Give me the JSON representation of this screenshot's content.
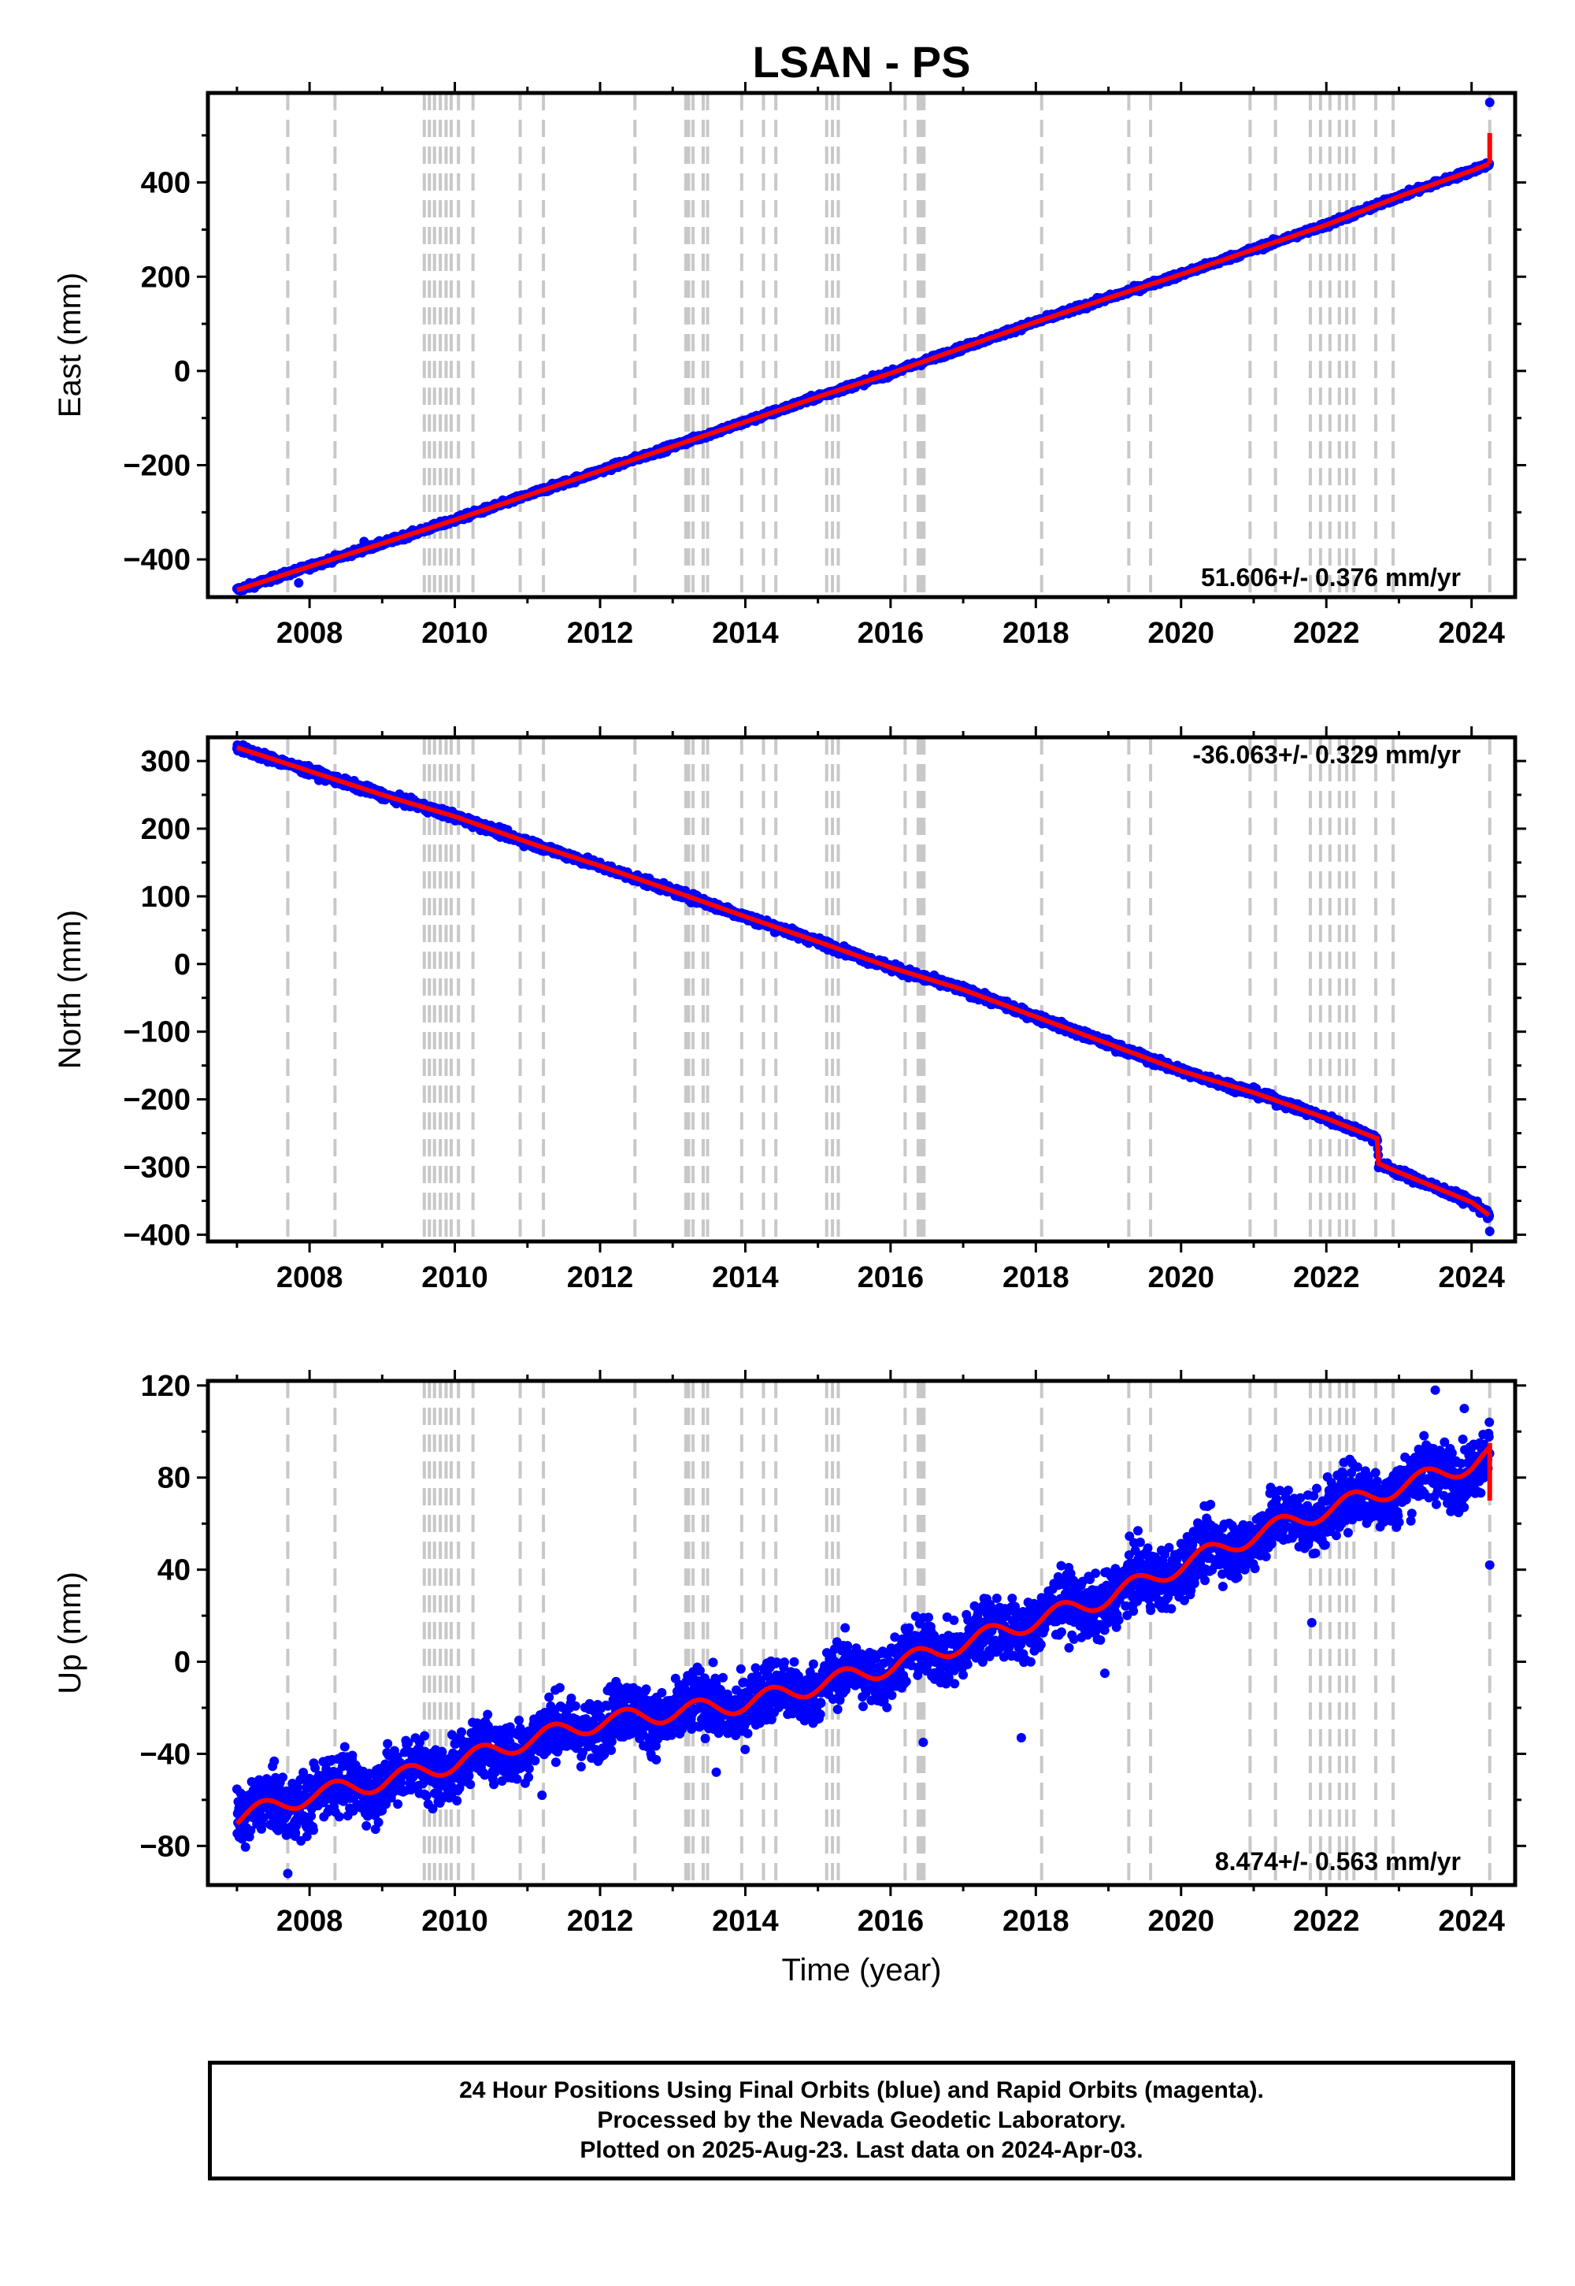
{
  "title": "LSAN - PS",
  "xlabel": "Time (year)",
  "caption": {
    "line1": "24 Hour Positions Using Final Orbits (blue) and Rapid Orbits (magenta).",
    "line2": "Processed by the Nevada Geodetic Laboratory.",
    "line3": "Plotted on 2025-Aug-23. Last data on 2024-Apr-03."
  },
  "colors": {
    "data": "#0000ff",
    "model": "#ff0000",
    "event_line": "#c8c8c8",
    "axis": "#000000"
  },
  "chart_data": [
    {
      "type": "scatter",
      "component": "east",
      "ylabel": "East (mm)",
      "rate_label": "51.606+/- 0.376 mm/yr",
      "xlim": [
        2006.6,
        2024.6
      ],
      "ylim": [
        -480,
        590
      ],
      "yticks": [
        -400,
        -200,
        0,
        200,
        400
      ],
      "yminor": [
        -300,
        -100,
        100,
        300,
        500
      ],
      "xticks": [
        2008,
        2010,
        2012,
        2014,
        2016,
        2018,
        2020,
        2022,
        2024
      ],
      "series": [
        {
          "x": [
            2007.0,
            2008.0,
            2009.0,
            2010.0,
            2011.0,
            2012.0,
            2013.0,
            2014.0,
            2015.0,
            2016.0,
            2017.0,
            2018.0,
            2019.0,
            2020.0,
            2021.0,
            2022.0,
            2023.0,
            2024.0,
            2024.25
          ],
          "y": [
            -465,
            -415,
            -366,
            -316,
            -264,
            -212,
            -160,
            -108,
            -55,
            -5,
            50,
            104,
            155,
            205,
            258,
            310,
            370,
            425,
            440
          ]
        }
      ],
      "outliers": [
        [
          2024.25,
          570
        ],
        [
          2007.85,
          -450
        ],
        [
          2008.75,
          -362
        ]
      ],
      "final_step": [
        440,
        505
      ]
    },
    {
      "type": "scatter",
      "component": "north",
      "ylabel": "North (mm)",
      "rate_label": "-36.063+/- 0.329 mm/yr",
      "xlim": [
        2006.6,
        2024.6
      ],
      "ylim": [
        -410,
        335
      ],
      "yticks": [
        -400,
        -300,
        -200,
        -100,
        0,
        100,
        200,
        300
      ],
      "yminor": [
        -350,
        -250,
        -150,
        -50,
        50,
        150,
        250
      ],
      "xticks": [
        2008,
        2010,
        2012,
        2014,
        2016,
        2018,
        2020,
        2022,
        2024
      ],
      "series": [
        {
          "x": [
            2007.0,
            2008.0,
            2009.0,
            2010.0,
            2011.0,
            2012.0,
            2013.0,
            2014.0,
            2015.0,
            2016.0,
            2017.0,
            2018.0,
            2019.0,
            2020.0,
            2021.0,
            2022.0,
            2022.7,
            2022.72,
            2023.0,
            2024.0,
            2024.25
          ],
          "y": [
            320,
            285,
            250,
            218,
            180,
            145,
            108,
            70,
            33,
            -5,
            -38,
            -78,
            -118,
            -158,
            -190,
            -228,
            -258,
            -295,
            -308,
            -352,
            -372
          ]
        }
      ],
      "outliers": [
        [
          2024.25,
          -395
        ]
      ],
      "final_step": null
    },
    {
      "type": "scatter",
      "component": "up",
      "ylabel": "Up (mm)",
      "rate_label": "8.474+/- 0.563 mm/yr",
      "xlim": [
        2006.6,
        2024.6
      ],
      "ylim": [
        -97,
        122
      ],
      "yticks": [
        -80,
        -40,
        0,
        40,
        80,
        120
      ],
      "yminor": [
        -60,
        -20,
        20,
        60,
        100
      ],
      "xticks": [
        2008,
        2010,
        2012,
        2014,
        2016,
        2018,
        2020,
        2022,
        2024
      ],
      "series": [
        {
          "x": [
            2007.0,
            2008.0,
            2009.0,
            2010.0,
            2011.0,
            2012.0,
            2013.0,
            2014.0,
            2015.0,
            2016.0,
            2017.0,
            2018.0,
            2019.0,
            2020.0,
            2021.0,
            2022.0,
            2023.0,
            2024.0,
            2024.25
          ],
          "y": [
            -68,
            -58,
            -52,
            -44,
            -34,
            -26,
            -22,
            -18,
            -10,
            -2,
            8,
            18,
            28,
            42,
            55,
            66,
            76,
            86,
            90
          ]
        }
      ],
      "outliers": [
        [
          2024.25,
          42
        ],
        [
          2007.7,
          -92
        ],
        [
          2021.8,
          17
        ],
        [
          2017.8,
          -33
        ],
        [
          2013.6,
          -48
        ],
        [
          2011.2,
          -58
        ],
        [
          2016.45,
          -35
        ],
        [
          2023.5,
          118
        ],
        [
          2023.9,
          110
        ],
        [
          2018.95,
          -5
        ],
        [
          2012.7,
          -40
        ]
      ],
      "final_step": [
        70,
        95
      ]
    }
  ],
  "event_lines": [
    2007.7,
    2008.35,
    2009.58,
    2009.65,
    2009.72,
    2009.8,
    2009.88,
    2009.95,
    2010.05,
    2010.25,
    2010.9,
    2011.22,
    2012.48,
    2013.18,
    2013.22,
    2013.28,
    2013.42,
    2013.48,
    2013.95,
    2014.25,
    2014.42,
    2015.12,
    2015.2,
    2015.28,
    2016.2,
    2016.38,
    2016.42,
    2016.46,
    2018.08,
    2019.28,
    2019.58,
    2020.95,
    2021.3,
    2021.78,
    2021.92,
    2022.05,
    2022.18,
    2022.28,
    2022.38,
    2022.68,
    2022.92,
    2024.25
  ]
}
